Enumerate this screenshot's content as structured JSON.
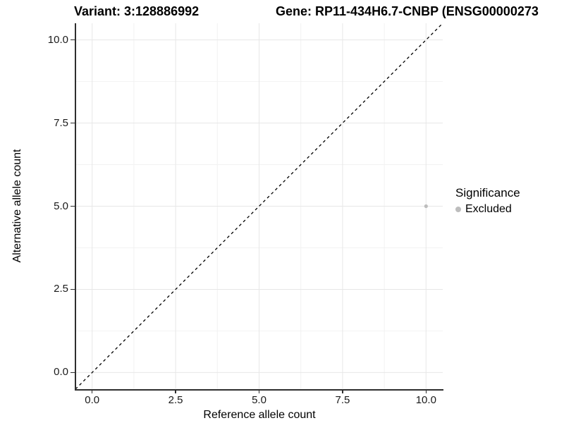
{
  "header": {
    "variant_title": "Variant: 3:128886992",
    "gene_title": "Gene: RP11-434H6.7-CNBP (ENSG00000273"
  },
  "chart_data": {
    "type": "scatter",
    "title": "Variant: 3:128886992 / Gene: RP11-434H6.7-CNBP (ENSG00000273",
    "xlabel": "Reference allele count",
    "ylabel": "Alternative allele count",
    "xlim": [
      -0.5,
      10.5
    ],
    "ylim": [
      -0.5,
      10.5
    ],
    "x_ticks": {
      "values": [
        0,
        2.5,
        5,
        7.5,
        10
      ],
      "labels": [
        "0.0",
        "2.5",
        "5.0",
        "7.5",
        "10.0"
      ]
    },
    "y_ticks": {
      "values": [
        0,
        2.5,
        5,
        7.5,
        10
      ],
      "labels": [
        "0.0",
        "2.5",
        "5.0",
        "7.5",
        "10.0"
      ]
    },
    "minor_ticks": [
      1.25,
      3.75,
      6.25,
      8.75
    ],
    "grid": true,
    "reference_line": {
      "type": "identity",
      "style": "dashed",
      "color": "#000000"
    },
    "series": [
      {
        "name": "Excluded",
        "color": "#bdbdbd",
        "point_radius": 2.6,
        "points": [
          {
            "x": 10,
            "y": 5
          }
        ]
      }
    ],
    "legend": {
      "title": "Significance",
      "position": "right",
      "entries": [
        {
          "label": "Excluded",
          "color": "#bdbdbd"
        }
      ]
    },
    "colors": {
      "grid_major": "#e7e7e7",
      "grid_minor": "#f2f2f2",
      "axis": "#2e2e2e",
      "tick_label": "#1a1a1a"
    }
  }
}
